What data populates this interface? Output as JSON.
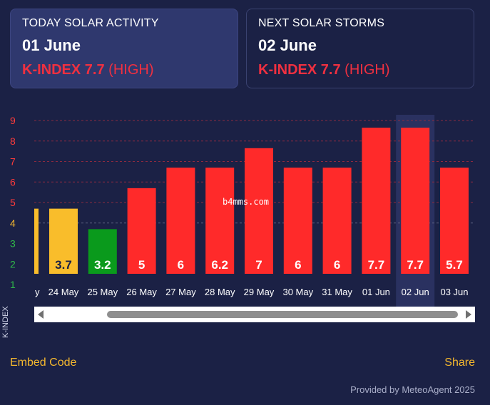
{
  "today": {
    "label": "TODAY SOLAR ACTIVITY",
    "date": "01 June",
    "k": "K-INDEX 7.7",
    "level": "(HIGH)"
  },
  "next": {
    "label": "NEXT SOLAR STORMS",
    "date": "02 June",
    "k": "K-INDEX 7.7",
    "level": "(HIGH)"
  },
  "chart_data": {
    "type": "bar",
    "title": "",
    "ylabel": "K-INDEX",
    "ylim": [
      1,
      9
    ],
    "yticks": [
      "1",
      "2",
      "3",
      "4",
      "5",
      "6",
      "7",
      "8",
      "9"
    ],
    "partial_category": "y",
    "categories": [
      "24 May",
      "25 May",
      "26 May",
      "27 May",
      "28 May",
      "29 May",
      "30 May",
      "31 May",
      "01 Jun",
      "02 Jun",
      "03 Jun"
    ],
    "values": [
      3.7,
      3.2,
      5,
      6,
      6.2,
      7,
      6,
      6,
      7.7,
      7.7,
      5.7
    ],
    "bar_heights": [
      4.7,
      3.7,
      5.7,
      6.7,
      6.7,
      7.65,
      6.7,
      6.7,
      8.65,
      8.65,
      6.7
    ],
    "highlighted_category": "02 Jun",
    "colors": {
      "low": "#0a9a1c",
      "moderate": "#f9bd2b",
      "high": "#ff2a2a",
      "tick_high": "#ff3b3b",
      "tick_mid": "#f5b82e",
      "tick_low": "#2fb84a"
    }
  },
  "footer": {
    "embed": "Embed Code",
    "share": "Share",
    "provided": "Provided by MeteoAgent 2025"
  },
  "watermark": "b4mms.com"
}
